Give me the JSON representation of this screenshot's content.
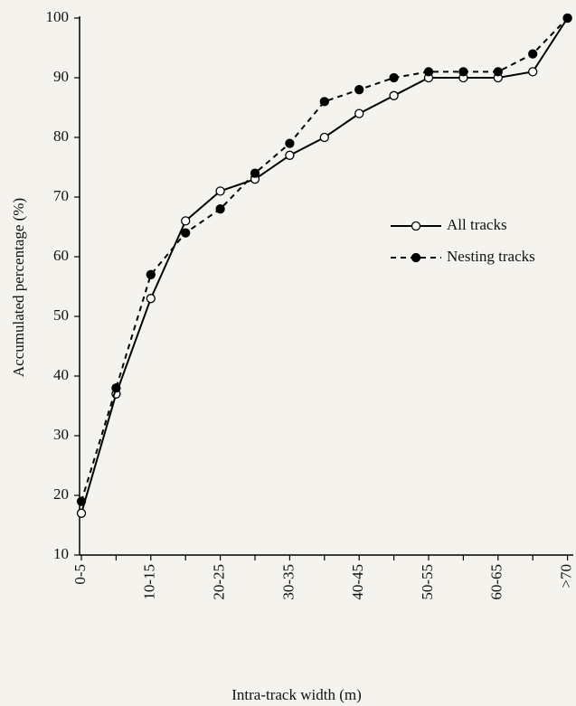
{
  "chart_data": {
    "type": "line",
    "x_label": "Intra-track width (m)",
    "y_label": "Accumulated percentage (%)",
    "categories": [
      "0-5",
      null,
      "10-15",
      null,
      "20-25",
      null,
      "30-35",
      null,
      "40-45",
      null,
      "50-55",
      null,
      "60-65",
      null,
      ">70"
    ],
    "series": [
      {
        "name": "All tracks",
        "color": "#000000",
        "line_style": "solid",
        "marker_fill": "#ffffff",
        "values": [
          17,
          37,
          53,
          66,
          71,
          73,
          77,
          80,
          84,
          87,
          90,
          90,
          90,
          91,
          100
        ]
      },
      {
        "name": "Nesting tracks",
        "color": "#000000",
        "line_style": "dashed",
        "marker_fill": "#000000",
        "values": [
          19,
          38,
          57,
          64,
          68,
          74,
          79,
          86,
          88,
          90,
          91,
          91,
          91,
          94,
          100
        ]
      }
    ],
    "ylim": [
      10,
      100
    ],
    "yticks": [
      10,
      20,
      30,
      40,
      50,
      60,
      70,
      80,
      90,
      100
    ],
    "grid": false
  }
}
